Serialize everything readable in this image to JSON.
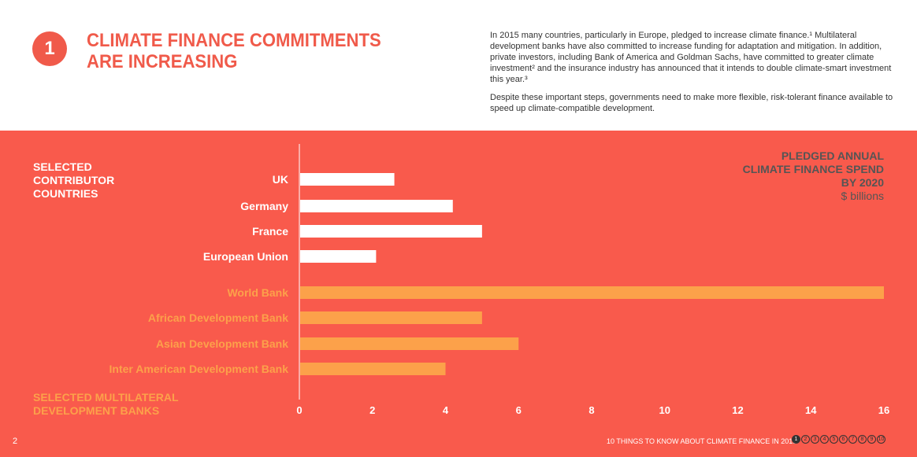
{
  "header": {
    "number": "1",
    "title_lines": [
      "CLIMATE FINANCE COMMITMENTS",
      "ARE INCREASING"
    ],
    "intro_paragraphs": [
      "In 2015 many countries, particularly in Europe, pledged to increase climate finance.¹ Multilateral development banks have also committed to increase funding for adaptation and mitigation. In addition, private investors, including Bank of America and Goldman Sachs, have committed to greater climate investment² and the insurance industry has announced that it intends to double climate-smart investment this year.³",
      "Despite these important steps, governments need to make more flexible, risk-tolerant finance available to speed up climate-compatible development."
    ]
  },
  "labels": {
    "countries_group": [
      "SELECTED",
      "CONTRIBUTOR",
      "COUNTRIES"
    ],
    "banks_group": [
      "SELECTED MULTILATERAL",
      "DEVELOPMENT BANKS"
    ],
    "unit_title": [
      "PLEDGED ANNUAL",
      "CLIMATE FINANCE SPEND",
      "BY 2020"
    ],
    "unit": "$ billions"
  },
  "colors": {
    "panel": "#f95a4c",
    "country_bar": "#ffffff",
    "bank_bar": "#fca14a",
    "accent": "#f05a4a"
  },
  "chart_data": {
    "type": "bar",
    "orientation": "horizontal",
    "categories": [
      "UK",
      "Germany",
      "France",
      "European Union",
      "World Bank",
      "African Development Bank",
      "Asian Development Bank",
      "Inter American Development Bank"
    ],
    "groups": [
      "countries",
      "countries",
      "countries",
      "countries",
      "banks",
      "banks",
      "banks",
      "banks"
    ],
    "values": [
      2.6,
      4.2,
      5.0,
      2.1,
      16.0,
      5.0,
      6.0,
      4.0
    ],
    "xlim": [
      0,
      16
    ],
    "xticks": [
      0,
      2,
      4,
      6,
      8,
      10,
      12,
      14,
      16
    ],
    "grid": false,
    "title": "PLEDGED ANNUAL CLIMATE FINANCE SPEND BY 2020",
    "xlabel": "$ billions",
    "ylabel": ""
  },
  "footer": {
    "page": "2",
    "publication": "10 THINGS TO KNOW ABOUT CLIMATE FINANCE IN 2015",
    "nav_numbers": [
      "1",
      "2",
      "3",
      "4",
      "5",
      "6",
      "7",
      "8",
      "9",
      "10"
    ],
    "active": "1"
  }
}
